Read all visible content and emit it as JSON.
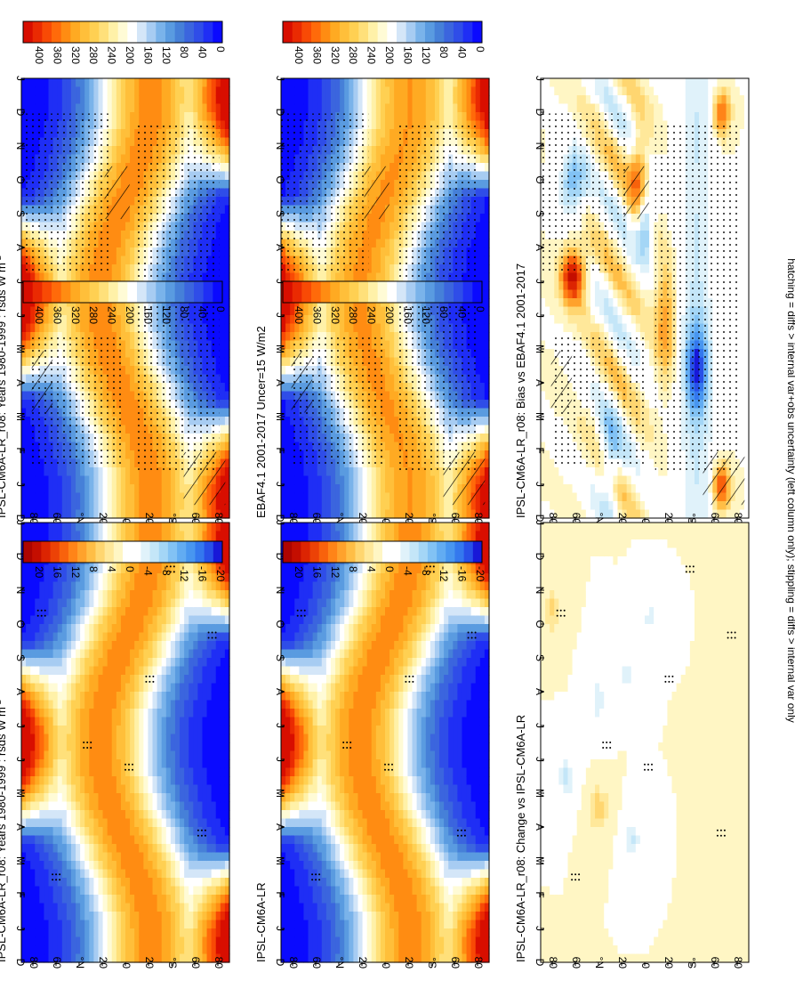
{
  "figure": {
    "footer": "hatching = diffs > internal var+obs uncertainty (left column only); stippling = diffs > internal var only",
    "orientation": "rotated 90 degrees clockwise"
  },
  "colorbars": {
    "absolute": {
      "ticks": [
        "400",
        "360",
        "320",
        "280",
        "240",
        "200",
        "160",
        "120",
        "80",
        "40",
        "0"
      ],
      "min": 0,
      "max": 420,
      "step": 20
    },
    "difference": {
      "ticks": [
        "20",
        "16",
        "12",
        "8",
        "4",
        "0",
        "-4",
        "-8",
        "-12",
        "-16",
        "-20"
      ],
      "min": -22,
      "max": 22,
      "step": 2
    }
  },
  "axes": {
    "months": [
      "D",
      "J",
      "F",
      "M",
      "A",
      "M",
      "J",
      "J",
      "A",
      "S",
      "O",
      "N",
      "D",
      "J"
    ],
    "lat_ticks": [
      "80",
      "60",
      "°N",
      "20",
      "0",
      "20",
      "°S",
      "60",
      "80"
    ]
  },
  "panels": [
    {
      "id": "top-left",
      "title": "IPSL-CM6A-LR_r08: Years 1980-1999 : rsds W m",
      "title_sup": "-2",
      "colorbar": "absolute",
      "overlay": "stipple+hatch"
    },
    {
      "id": "top-right",
      "title": "IPSL-CM6A-LR_r08: Years 1980-1999 : rsds W m",
      "title_sup": "-2",
      "colorbar": "absolute",
      "overlay": "dots"
    },
    {
      "id": "mid-left",
      "title": "EBAF4.1 2001-2017 Uncer=15 W/m2",
      "title_sup": "",
      "colorbar": "absolute",
      "overlay": "stipple+hatch"
    },
    {
      "id": "mid-right",
      "title": "IPSL-CM6A-LR",
      "title_sup": "",
      "colorbar": "absolute",
      "overlay": "dots"
    },
    {
      "id": "bottom-left",
      "title": "IPSL-CM6A-LR_r08: Bias vs EBAF4.1 2001-2017",
      "title_sup": "",
      "colorbar": "difference",
      "overlay": "stipple+hatch"
    },
    {
      "id": "bottom-right",
      "title": "IPSL-CM6A-LR_r08: Change vs IPSL-CM6A-LR",
      "title_sup": "",
      "colorbar": "difference",
      "overlay": "dots"
    }
  ],
  "chart_data": [
    {
      "type": "heatmap",
      "panel": "top-left",
      "title": "IPSL-CM6A-LR_r08: Years 1980-1999 : rsds W m-2",
      "x": [
        "D",
        "J",
        "F",
        "M",
        "A",
        "M",
        "J",
        "J",
        "A",
        "S",
        "O",
        "N",
        "D",
        "J"
      ],
      "y_range": [
        -90,
        90
      ],
      "zlim": [
        0,
        400
      ]
    },
    {
      "type": "heatmap",
      "panel": "top-right",
      "title": "IPSL-CM6A-LR_r08: Years 1980-1999 : rsds W m-2",
      "x": [
        "D",
        "J",
        "F",
        "M",
        "A",
        "M",
        "J",
        "J",
        "A",
        "S",
        "O",
        "N",
        "D",
        "J"
      ],
      "y_range": [
        -90,
        90
      ],
      "zlim": [
        0,
        400
      ]
    },
    {
      "type": "heatmap",
      "panel": "mid-left",
      "title": "EBAF4.1 2001-2017 Uncer=15 W/m2",
      "x": [
        "D",
        "J",
        "F",
        "M",
        "A",
        "M",
        "J",
        "J",
        "A",
        "S",
        "O",
        "N",
        "D",
        "J"
      ],
      "y_range": [
        -90,
        90
      ],
      "zlim": [
        0,
        400
      ]
    },
    {
      "type": "heatmap",
      "panel": "mid-right",
      "title": "IPSL-CM6A-LR",
      "x": [
        "D",
        "J",
        "F",
        "M",
        "A",
        "M",
        "J",
        "J",
        "A",
        "S",
        "O",
        "N",
        "D",
        "J"
      ],
      "y_range": [
        -90,
        90
      ],
      "zlim": [
        0,
        400
      ]
    },
    {
      "type": "heatmap",
      "panel": "bottom-left",
      "title": "IPSL-CM6A-LR_r08: Bias vs EBAF4.1 2001-2017",
      "x": [
        "D",
        "J",
        "F",
        "M",
        "A",
        "M",
        "J",
        "J",
        "A",
        "S",
        "O",
        "N",
        "D",
        "J"
      ],
      "y_range": [
        -90,
        90
      ],
      "zlim": [
        -20,
        20
      ]
    },
    {
      "type": "heatmap",
      "panel": "bottom-right",
      "title": "IPSL-CM6A-LR_r08: Change vs IPSL-CM6A-LR",
      "x": [
        "D",
        "J",
        "F",
        "M",
        "A",
        "M",
        "J",
        "J",
        "A",
        "S",
        "O",
        "N",
        "D",
        "J"
      ],
      "y_range": [
        -90,
        90
      ],
      "zlim": [
        -20,
        20
      ]
    }
  ]
}
